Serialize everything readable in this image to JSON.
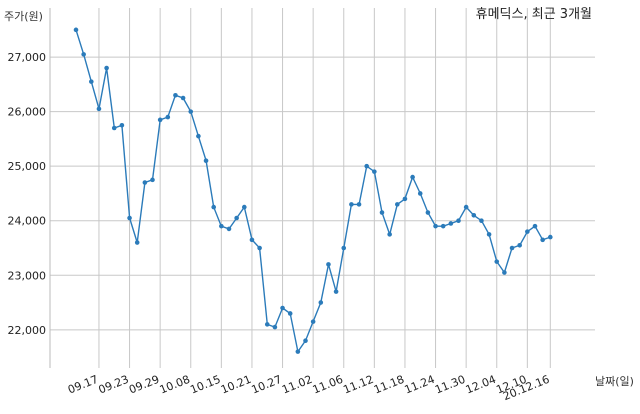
{
  "chart_data": {
    "type": "line",
    "title": "휴메딕스, 최근 3개월",
    "ylabel": "주가(원)",
    "xlabel": "날짜(일)",
    "ylim": [
      21300,
      27900
    ],
    "yticks": [
      22000,
      23000,
      24000,
      25000,
      26000,
      27000
    ],
    "ytick_labels": [
      "22,000",
      "23,000",
      "24,000",
      "25,000",
      "26,000",
      "27,000"
    ],
    "xticks": [
      {
        "index": 3,
        "label": "09.17"
      },
      {
        "index": 7,
        "label": "09.23"
      },
      {
        "index": 11,
        "label": "09.29"
      },
      {
        "index": 15,
        "label": "10.08"
      },
      {
        "index": 19,
        "label": "10.15"
      },
      {
        "index": 23,
        "label": "10.21"
      },
      {
        "index": 27,
        "label": "10.27"
      },
      {
        "index": 31,
        "label": "11.02"
      },
      {
        "index": 35,
        "label": "11.06"
      },
      {
        "index": 39,
        "label": "11.12"
      },
      {
        "index": 43,
        "label": "11.18"
      },
      {
        "index": 47,
        "label": "11.24"
      },
      {
        "index": 51,
        "label": "11.30"
      },
      {
        "index": 55,
        "label": "12.04"
      },
      {
        "index": 59,
        "label": "12.10"
      },
      {
        "index": 62,
        "label": "20.12.16"
      }
    ],
    "grid": true,
    "series": [
      {
        "values": [
          27500,
          27050,
          26550,
          26050,
          26800,
          25700,
          25750,
          24050,
          23600,
          24700,
          24750,
          25850,
          25900,
          26300,
          26250,
          26000,
          25550,
          25100,
          24250,
          23900,
          23850,
          24050,
          24250,
          23650,
          23500,
          22100,
          22050,
          22400,
          22300,
          21600,
          21800,
          22150,
          22500,
          23200,
          22700,
          23500,
          24300,
          24300,
          25000,
          24900,
          24150,
          23750,
          24300,
          24400,
          24800,
          24500,
          24150,
          23900,
          23900,
          23950,
          24000,
          24250,
          24100,
          24000,
          23750,
          23250,
          23050,
          23500,
          23550,
          23800,
          23900,
          23650,
          23700
        ]
      }
    ]
  }
}
